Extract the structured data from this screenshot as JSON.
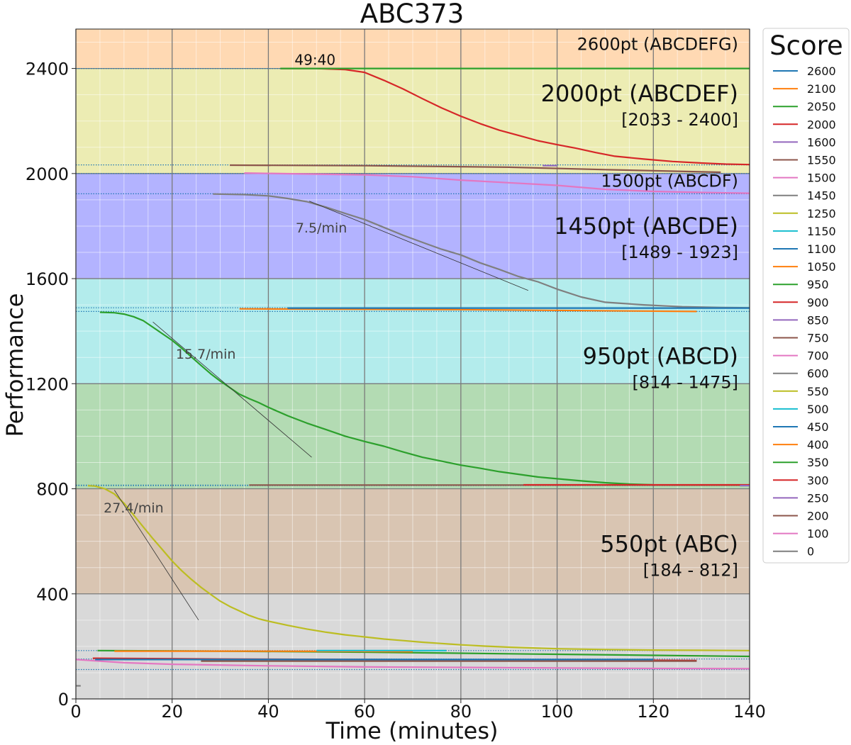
{
  "chart_data": {
    "type": "line",
    "title": "ABC373",
    "xlabel": "Time (minutes)",
    "ylabel": "Performance",
    "xlim": [
      0,
      140
    ],
    "ylim": [
      0,
      2550
    ],
    "xticks": [
      0,
      20,
      40,
      60,
      80,
      100,
      120,
      140
    ],
    "yticks": [
      0,
      400,
      800,
      1200,
      1600,
      2000,
      2400
    ],
    "grid": true,
    "legend": {
      "title": "Score",
      "placement": "right-outside",
      "entries": [
        {
          "label": "2600",
          "color": "#1f77b4"
        },
        {
          "label": "2100",
          "color": "#ff7f0e"
        },
        {
          "label": "2050",
          "color": "#2ca02c"
        },
        {
          "label": "2000",
          "color": "#d62728"
        },
        {
          "label": "1600",
          "color": "#9467bd"
        },
        {
          "label": "1550",
          "color": "#8c564b"
        },
        {
          "label": "1500",
          "color": "#e377c2"
        },
        {
          "label": "1450",
          "color": "#7f7f7f"
        },
        {
          "label": "1250",
          "color": "#bcbd22"
        },
        {
          "label": "1150",
          "color": "#17becf"
        },
        {
          "label": "1100",
          "color": "#1f77b4"
        },
        {
          "label": "1050",
          "color": "#ff7f0e"
        },
        {
          "label": "950",
          "color": "#2ca02c"
        },
        {
          "label": "900",
          "color": "#d62728"
        },
        {
          "label": "850",
          "color": "#9467bd"
        },
        {
          "label": "750",
          "color": "#8c564b"
        },
        {
          "label": "700",
          "color": "#e377c2"
        },
        {
          "label": "600",
          "color": "#7f7f7f"
        },
        {
          "label": "550",
          "color": "#bcbd22"
        },
        {
          "label": "500",
          "color": "#17becf"
        },
        {
          "label": "450",
          "color": "#1f77b4"
        },
        {
          "label": "400",
          "color": "#ff7f0e"
        },
        {
          "label": "350",
          "color": "#2ca02c"
        },
        {
          "label": "300",
          "color": "#d62728"
        },
        {
          "label": "250",
          "color": "#9467bd"
        },
        {
          "label": "200",
          "color": "#8c564b"
        },
        {
          "label": "100",
          "color": "#e377c2"
        },
        {
          "label": "0",
          "color": "#7f7f7f"
        }
      ]
    },
    "bands": [
      {
        "y0": 0,
        "y1": 400,
        "color": "#d9d9d9"
      },
      {
        "y0": 400,
        "y1": 800,
        "color": "#d9c5b2"
      },
      {
        "y0": 800,
        "y1": 1200,
        "color": "#b3dbb3"
      },
      {
        "y0": 1200,
        "y1": 1600,
        "color": "#b3ecec"
      },
      {
        "y0": 1600,
        "y1": 2000,
        "color": "#b3b3ff"
      },
      {
        "y0": 2000,
        "y1": 2400,
        "color": "#ececb3"
      },
      {
        "y0": 2400,
        "y1": 2550,
        "color": "#ffd9b3"
      }
    ],
    "problem_labels": [
      {
        "text": "2600pt (ABCDEFG)",
        "range": "",
        "y": 2470,
        "size": "small"
      },
      {
        "text": "2000pt (ABCDEF)",
        "range": "[2033 - 2400]",
        "y": 2275,
        "size": "large"
      },
      {
        "text": "1500pt (ABCDF)",
        "range": "",
        "y": 1950,
        "size": "small"
      },
      {
        "text": "1450pt (ABCDE)",
        "range": "[1489 - 1923]",
        "y": 1770,
        "size": "large"
      },
      {
        "text": "950pt (ABCD)",
        "range": "[814 - 1475]",
        "y": 1275,
        "size": "large"
      },
      {
        "text": "550pt (ABC)",
        "range": "[184 - 812]",
        "y": 560,
        "size": "large"
      }
    ],
    "annotations": [
      {
        "text": "49:40",
        "x": 49.7,
        "y": 2400
      },
      {
        "text": "7.5/min",
        "x": 51,
        "y": 1775
      },
      {
        "text": "15.7/min",
        "x": 27,
        "y": 1295
      },
      {
        "text": "27.4/min",
        "x": 12,
        "y": 710
      }
    ],
    "reference_lines": [
      2400,
      2033,
      2000,
      1923,
      1489,
      1475,
      814,
      812,
      184,
      152,
      112
    ],
    "slope_lines": [
      {
        "x": [
          48.5,
          94
        ],
        "y": [
          1895,
          1555
        ]
      },
      {
        "x": [
          16,
          49
        ],
        "y": [
          1435,
          920
        ]
      },
      {
        "x": [
          8,
          25.5
        ],
        "y": [
          795,
          300
        ]
      }
    ],
    "series": [
      {
        "color": "#d62728",
        "x": [
          42.5,
          50,
          56,
          60,
          64,
          68,
          72,
          76,
          80,
          84,
          88,
          92,
          96,
          100,
          104,
          108,
          112,
          118,
          124,
          130,
          135,
          140
        ],
        "y": [
          2400,
          2400,
          2396,
          2385,
          2355,
          2322,
          2285,
          2250,
          2218,
          2190,
          2165,
          2145,
          2125,
          2110,
          2096,
          2080,
          2066,
          2055,
          2046,
          2040,
          2036,
          2034
        ]
      },
      {
        "color": "#2ca02c",
        "x": [
          42.5,
          140
        ],
        "y": [
          2400,
          2400
        ]
      },
      {
        "color": "#8c564b",
        "x": [
          32,
          60,
          90,
          110,
          134
        ],
        "y": [
          2032,
          2030,
          2024,
          2015,
          2005
        ]
      },
      {
        "color": "#9467bd",
        "x": [
          97,
          100
        ],
        "y": [
          2030,
          2030
        ]
      },
      {
        "color": "#e377c2",
        "x": [
          35,
          60,
          70,
          80,
          90,
          100,
          110,
          120,
          130,
          140
        ],
        "y": [
          2002,
          1995,
          1988,
          1975,
          1965,
          1955,
          1940,
          1932,
          1928,
          1925
        ]
      },
      {
        "color": "#7f7f7f",
        "x": [
          28.5,
          35,
          40,
          44,
          48,
          52,
          56,
          60,
          64,
          68,
          72,
          76,
          80,
          84,
          88,
          92,
          96,
          100,
          105,
          110,
          118,
          126,
          134,
          140
        ],
        "y": [
          1922,
          1920,
          1915,
          1905,
          1893,
          1872,
          1848,
          1825,
          1795,
          1765,
          1738,
          1712,
          1690,
          1660,
          1635,
          1608,
          1588,
          1560,
          1530,
          1510,
          1500,
          1493,
          1490,
          1489
        ]
      },
      {
        "color": "#ff7f0e",
        "x": [
          34,
          80,
          129
        ],
        "y": [
          1485,
          1482,
          1475
        ]
      },
      {
        "color": "#1f77b4",
        "x": [
          44,
          100,
          140
        ],
        "y": [
          1488,
          1488,
          1488
        ]
      },
      {
        "color": "#2ca02c",
        "x": [
          5,
          8,
          10,
          12,
          14,
          16,
          18,
          20,
          22,
          24,
          26,
          28,
          30,
          32,
          34,
          36,
          38,
          40,
          44,
          48,
          52,
          56,
          60,
          64,
          68,
          72,
          76,
          80,
          84,
          88,
          92,
          96,
          100,
          105,
          110,
          115,
          120,
          126,
          132,
          138,
          140
        ],
        "y": [
          1472,
          1470,
          1465,
          1455,
          1440,
          1415,
          1390,
          1365,
          1335,
          1302,
          1270,
          1238,
          1210,
          1185,
          1160,
          1143,
          1128,
          1110,
          1078,
          1050,
          1025,
          1000,
          980,
          962,
          940,
          920,
          905,
          890,
          878,
          865,
          855,
          845,
          838,
          830,
          823,
          818,
          815,
          814,
          814,
          814,
          814
        ]
      },
      {
        "color": "#8c564b",
        "x": [
          36,
          140
        ],
        "y": [
          814,
          814
        ]
      },
      {
        "color": "#d62728",
        "x": [
          93,
          140
        ],
        "y": [
          815,
          815
        ]
      },
      {
        "color": "#9467bd",
        "x": [
          138,
          140
        ],
        "y": [
          812,
          812
        ]
      },
      {
        "color": "#bcbd22",
        "x": [
          2.5,
          4,
          6,
          8,
          10,
          12,
          14,
          16,
          18,
          20,
          22,
          24,
          26,
          28,
          30,
          32,
          34,
          36,
          38,
          40,
          44,
          48,
          52,
          56,
          60,
          64,
          68,
          72,
          76,
          80,
          85,
          90,
          95,
          100,
          110,
          120,
          130,
          140
        ],
        "y": [
          812,
          810,
          800,
          780,
          745,
          700,
          655,
          610,
          568,
          525,
          488,
          455,
          425,
          398,
          372,
          352,
          335,
          318,
          305,
          296,
          280,
          266,
          254,
          244,
          236,
          228,
          222,
          216,
          211,
          206,
          201,
          197,
          194,
          191,
          188,
          186,
          185,
          184
        ]
      },
      {
        "color": "#2ca02c",
        "x": [
          4.5,
          30,
          60,
          90,
          120,
          140
        ],
        "y": [
          184,
          182,
          178,
          172,
          166,
          162
        ]
      },
      {
        "color": "#ff7f0e",
        "x": [
          8,
          30,
          60,
          70
        ],
        "y": [
          182,
          182,
          181,
          180
        ]
      },
      {
        "color": "#17becf",
        "x": [
          50,
          77
        ],
        "y": [
          184,
          184
        ]
      },
      {
        "color": "#d62728",
        "x": [
          3.5,
          30,
          60,
          90,
          120,
          129
        ],
        "y": [
          155,
          152,
          150,
          148,
          147,
          146
        ]
      },
      {
        "color": "#8c564b",
        "x": [
          26,
          129
        ],
        "y": [
          144,
          144
        ]
      },
      {
        "color": "#e377c2",
        "x": [
          0,
          10,
          20,
          40,
          60,
          80,
          100,
          120,
          140
        ],
        "y": [
          150,
          138,
          132,
          126,
          122,
          120,
          118,
          116,
          115
        ]
      },
      {
        "color": "#1f77b4",
        "x": [
          4,
          120
        ],
        "y": [
          150,
          150
        ]
      },
      {
        "color": "#7f7f7f",
        "x": [
          0,
          1
        ],
        "y": [
          50,
          50
        ]
      }
    ]
  }
}
